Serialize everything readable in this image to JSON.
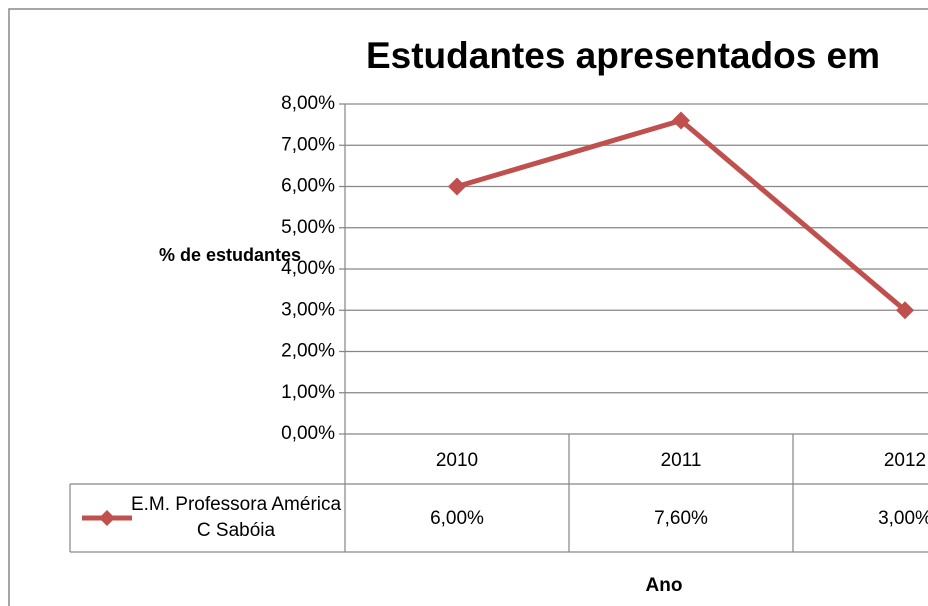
{
  "chart_data": {
    "type": "line",
    "title": "Estudantes apresentados em",
    "y_label": "% de estudantes",
    "x_label": "Ano",
    "categories": [
      "2010",
      "2011",
      "2012"
    ],
    "series": [
      {
        "name": "E.M. Professora América C Sabóia",
        "color": "#c0504d",
        "values": [
          6,
          7.6,
          3
        ],
        "value_labels": [
          "6,00%",
          "7,60%",
          "3,00%"
        ]
      }
    ],
    "ylim": [
      0,
      8
    ],
    "yticks": [
      {
        "value": 0,
        "label": "0,00%"
      },
      {
        "value": 1,
        "label": "1,00%"
      },
      {
        "value": 2,
        "label": "2,00%"
      },
      {
        "value": 3,
        "label": "3,00%"
      },
      {
        "value": 4,
        "label": "4,00%"
      },
      {
        "value": 5,
        "label": "5,00%"
      },
      {
        "value": 6,
        "label": "6,00%"
      },
      {
        "value": 7,
        "label": "7,00%"
      },
      {
        "value": 8,
        "label": "8,00%"
      }
    ],
    "grid": true,
    "data_table": true
  }
}
